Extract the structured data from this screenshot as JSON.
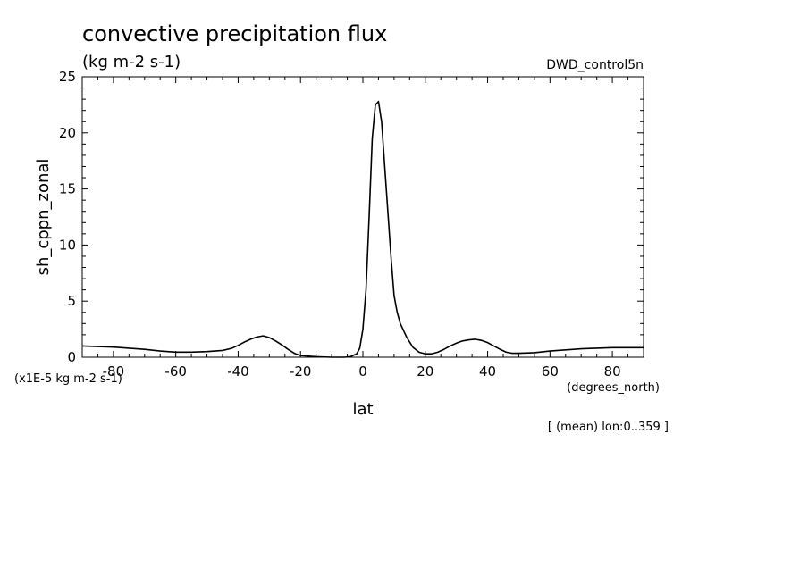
{
  "chart_data": {
    "type": "line",
    "title": "convective precipitation flux",
    "subtitle": "(kg m-2 s-1)",
    "dataset": "DWD_control5n",
    "ylabel": "sh_cppn_zonal",
    "xlabel": "lat",
    "xunits": "(degrees_north)",
    "yscale_note": "(x1E-5 kg m-2 s-1)",
    "footnote": "[ (mean) lon:0..359 ]",
    "xlim": [
      -90,
      90
    ],
    "ylim": [
      0,
      25
    ],
    "x_ticks": [
      -80,
      -60,
      -40,
      -20,
      0,
      20,
      40,
      60,
      80
    ],
    "y_ticks": [
      0,
      5,
      10,
      15,
      20,
      25
    ],
    "grid": false,
    "legend": "none",
    "series": [
      {
        "x": [
          -90,
          -85,
          -80,
          -75,
          -70,
          -65,
          -60,
          -55,
          -50,
          -45,
          -42,
          -40,
          -38,
          -36,
          -34,
          -32,
          -30,
          -28,
          -26,
          -24,
          -22,
          -20,
          -15,
          -10,
          -6,
          -4,
          -2,
          -1,
          0,
          1,
          2,
          3,
          4,
          5,
          6,
          7,
          8,
          9,
          10,
          11,
          12,
          14,
          16,
          18,
          20,
          22,
          24,
          26,
          28,
          30,
          32,
          34,
          36,
          38,
          40,
          42,
          44,
          46,
          48,
          50,
          55,
          60,
          65,
          70,
          75,
          80,
          85,
          90
        ],
        "y": [
          1.0,
          0.95,
          0.9,
          0.8,
          0.7,
          0.55,
          0.45,
          0.45,
          0.5,
          0.6,
          0.8,
          1.05,
          1.35,
          1.6,
          1.8,
          1.9,
          1.75,
          1.45,
          1.1,
          0.7,
          0.35,
          0.15,
          0.05,
          0.0,
          0.0,
          0.05,
          0.3,
          0.8,
          2.5,
          6.0,
          12.5,
          19.5,
          22.5,
          22.8,
          21.0,
          17.0,
          13.0,
          9.0,
          5.5,
          4.0,
          3.0,
          1.8,
          0.9,
          0.45,
          0.3,
          0.3,
          0.45,
          0.7,
          1.0,
          1.25,
          1.45,
          1.55,
          1.6,
          1.5,
          1.3,
          1.0,
          0.7,
          0.45,
          0.35,
          0.35,
          0.4,
          0.55,
          0.65,
          0.75,
          0.8,
          0.85,
          0.85,
          0.85
        ]
      }
    ]
  }
}
